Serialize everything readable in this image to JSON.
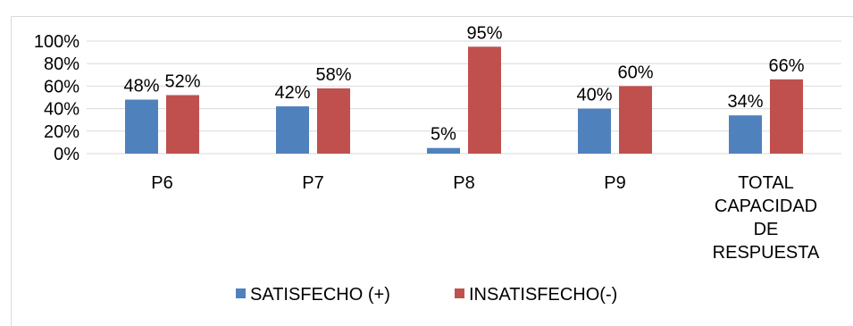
{
  "chart_data": {
    "type": "bar",
    "categories": [
      "P6",
      "P7",
      "P8",
      "P9",
      "TOTAL CAPACIDAD DE RESPUESTA"
    ],
    "category_lines": [
      [
        "P6"
      ],
      [
        "P7"
      ],
      [
        "P8"
      ],
      [
        "P9"
      ],
      [
        "TOTAL",
        "CAPACIDAD",
        "DE",
        "RESPUESTA"
      ]
    ],
    "series": [
      {
        "name": "SATISFECHO (+)",
        "values": [
          48,
          42,
          5,
          40,
          34
        ],
        "labels": [
          "48%",
          "42%",
          "5%",
          "40%",
          "34%"
        ],
        "color": "#4F81BD"
      },
      {
        "name": "INSATISFECHO(-)",
        "values": [
          52,
          58,
          95,
          60,
          66
        ],
        "labels": [
          "52%",
          "58%",
          "95%",
          "60%",
          "66%"
        ],
        "color": "#C0504D"
      }
    ],
    "ylim": [
      0,
      100
    ],
    "yticks": [
      {
        "value": 0,
        "label": "0%"
      },
      {
        "value": 20,
        "label": "20%"
      },
      {
        "value": 40,
        "label": "40%"
      },
      {
        "value": 60,
        "label": "60%"
      },
      {
        "value": 80,
        "label": "80%"
      },
      {
        "value": 100,
        "label": "100%"
      }
    ],
    "grid": true,
    "legend_position": "bottom",
    "title": "",
    "xlabel": "",
    "ylabel": ""
  }
}
